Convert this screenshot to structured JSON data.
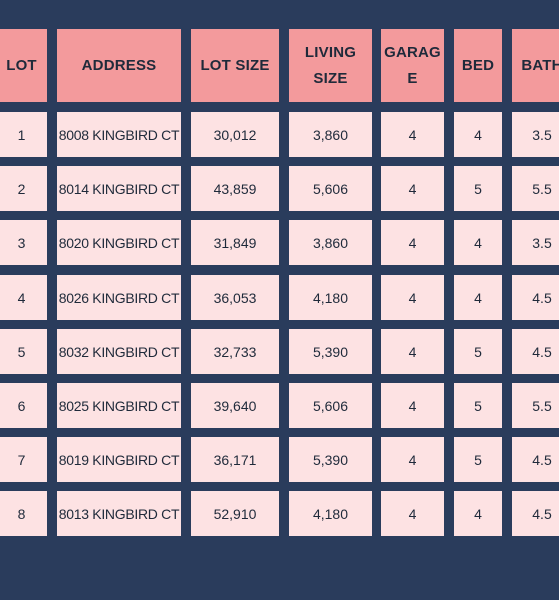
{
  "table": {
    "columns": [
      "LOT",
      "ADDRESS",
      "LOT SIZE",
      "LIVING SIZE",
      "GARAGE",
      "BED",
      "BATH"
    ],
    "header_display": [
      "LOT",
      "ADDRESS",
      "LOT SIZE",
      "LIVING\nSIZE",
      "GARAG\nE",
      "BED",
      "BATH"
    ],
    "rows": [
      [
        "1",
        "8008 KINGBIRD CT",
        "30,012",
        "3,860",
        "4",
        "4",
        "3.5"
      ],
      [
        "2",
        "8014 KINGBIRD CT",
        "43,859",
        "5,606",
        "4",
        "5",
        "5.5"
      ],
      [
        "3",
        "8020 KINGBIRD CT",
        "31,849",
        "3,860",
        "4",
        "4",
        "3.5"
      ],
      [
        "4",
        "8026 KINGBIRD CT",
        "36,053",
        "4,180",
        "4",
        "4",
        "4.5"
      ],
      [
        "5",
        "8032 KINGBIRD CT",
        "32,733",
        "5,390",
        "4",
        "5",
        "4.5"
      ],
      [
        "6",
        "8025 KINGBIRD CT",
        "39,640",
        "5,606",
        "4",
        "5",
        "5.5"
      ],
      [
        "7",
        "8019 KINGBIRD CT",
        "36,171",
        "5,390",
        "4",
        "5",
        "4.5"
      ],
      [
        "8",
        "8013 KINGBIRD CT",
        "52,910",
        "4,180",
        "4",
        "4",
        "4.5"
      ]
    ]
  },
  "colors": {
    "background": "#2a3c5c",
    "header": "#f39a9c",
    "cell": "#fde2e3",
    "text": "#1f2a3a"
  }
}
